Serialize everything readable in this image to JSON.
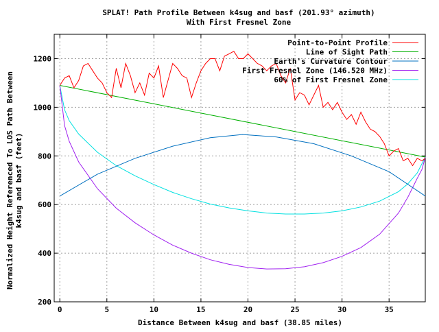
{
  "chart_data": {
    "type": "line",
    "title": "SPLAT! Path Profile Between k4sug and basf (201.93° azimuth)",
    "subtitle": "With First Fresnel Zone",
    "xlabel": "Distance Between k4sug and basf (38.85 miles)",
    "ylabel": "Normalized Height Referenced To LOS Path Between k4sug and basf (feet)",
    "xlim": [
      -0.6,
      38.85
    ],
    "ylim": [
      200,
      1300
    ],
    "x_ticks": [
      0,
      5,
      10,
      15,
      20,
      25,
      30,
      35
    ],
    "y_ticks": [
      200,
      400,
      600,
      800,
      1000,
      1200
    ],
    "grid": true,
    "legend_position": "top-right",
    "series": [
      {
        "name": "Point-to-Point Profile",
        "color": "#ff0000",
        "x": [
          0,
          0.5,
          1,
          1.5,
          2,
          2.5,
          3,
          3.5,
          4,
          4.5,
          5,
          5.5,
          6,
          6.5,
          7,
          7.5,
          8,
          8.5,
          9,
          9.5,
          10,
          10.5,
          11,
          11.5,
          12,
          12.5,
          13,
          13.5,
          14,
          14.5,
          15,
          15.5,
          16,
          16.5,
          17,
          17.5,
          18,
          18.5,
          19,
          19.5,
          20,
          20.5,
          21,
          21.5,
          22,
          22.5,
          23,
          23.5,
          24,
          24.5,
          25,
          25.5,
          26,
          26.5,
          27,
          27.5,
          28,
          28.5,
          29,
          29.5,
          30,
          30.5,
          31,
          31.5,
          32,
          32.5,
          33,
          33.5,
          34,
          34.5,
          35,
          35.5,
          36,
          36.5,
          37,
          37.5,
          38,
          38.5,
          38.85
        ],
        "values": [
          1090,
          1120,
          1130,
          1080,
          1110,
          1170,
          1180,
          1150,
          1120,
          1100,
          1060,
          1040,
          1160,
          1080,
          1180,
          1130,
          1060,
          1100,
          1050,
          1140,
          1120,
          1170,
          1040,
          1110,
          1180,
          1160,
          1130,
          1120,
          1040,
          1100,
          1150,
          1180,
          1200,
          1200,
          1150,
          1210,
          1220,
          1230,
          1200,
          1200,
          1220,
          1200,
          1180,
          1170,
          1150,
          1170,
          1180,
          1130,
          1100,
          1160,
          1030,
          1060,
          1050,
          1010,
          1050,
          1090,
          1000,
          1020,
          990,
          1020,
          980,
          950,
          970,
          930,
          980,
          940,
          910,
          900,
          880,
          850,
          800,
          820,
          830,
          780,
          790,
          760,
          790,
          780,
          790
        ]
      },
      {
        "name": "Line of Sight Path",
        "color": "#00b000",
        "x": [
          0,
          38.85
        ],
        "values": [
          1090,
          795
        ]
      },
      {
        "name": "Earth's Curvature Contour",
        "color": "#0070c0",
        "x": [
          0,
          4,
          8,
          12,
          16,
          19.4,
          23,
          27,
          31,
          35,
          38.85
        ],
        "values": [
          635,
          725,
          790,
          840,
          875,
          888,
          878,
          850,
          800,
          735,
          635
        ]
      },
      {
        "name": "First Fresnel Zone (146.520 MHz)",
        "color": "#a020f0",
        "x": [
          0,
          0.5,
          1,
          2,
          4,
          6,
          8,
          10,
          12,
          14,
          16,
          18,
          20,
          22,
          24,
          26,
          28,
          30,
          32,
          34,
          36,
          37,
          38,
          38.5,
          38.85
        ],
        "values": [
          1090,
          925,
          860,
          775,
          665,
          585,
          525,
          475,
          433,
          400,
          373,
          354,
          341,
          335,
          336,
          344,
          361,
          387,
          423,
          478,
          565,
          630,
          708,
          745,
          795
        ]
      },
      {
        "name": "60% of First Fresnel Zone",
        "color": "#00e0e0",
        "x": [
          0,
          0.5,
          1,
          2,
          4,
          6,
          8,
          10,
          12,
          14,
          16,
          18,
          20,
          22,
          24,
          26,
          28,
          30,
          32,
          34,
          36,
          37,
          38,
          38.85
        ],
        "values": [
          1090,
          990,
          945,
          890,
          815,
          760,
          718,
          682,
          650,
          624,
          602,
          586,
          574,
          565,
          561,
          561,
          565,
          574,
          590,
          614,
          653,
          685,
          730,
          795
        ]
      }
    ]
  }
}
